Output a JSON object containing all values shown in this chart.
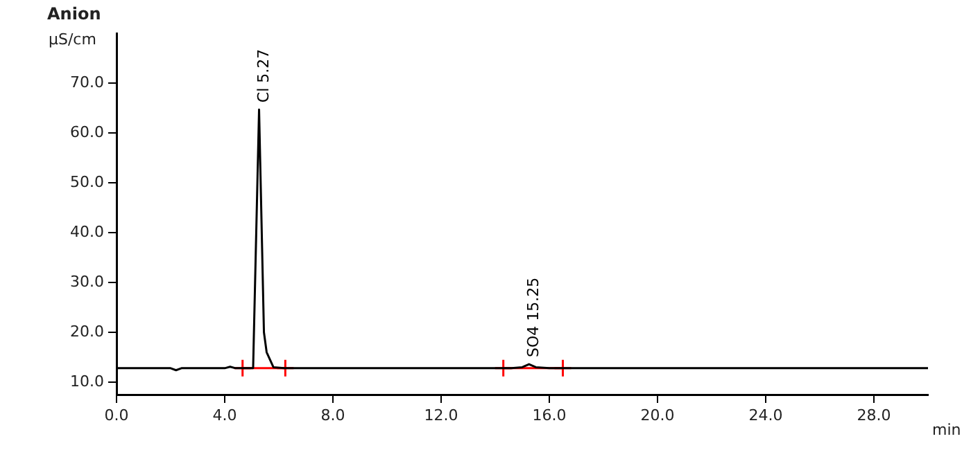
{
  "chart_data": {
    "type": "line",
    "title": "Anion",
    "ylabel": "µS/cm",
    "xlabel": "min",
    "xlim": [
      0,
      30
    ],
    "ylim": [
      7.5,
      80
    ],
    "xticks": [
      {
        "value": 0,
        "label": "0.0"
      },
      {
        "value": 4,
        "label": "4.0"
      },
      {
        "value": 8,
        "label": "8.0"
      },
      {
        "value": 12,
        "label": "12.0"
      },
      {
        "value": 16,
        "label": "16.0"
      },
      {
        "value": 20,
        "label": "20.0"
      },
      {
        "value": 24,
        "label": "24.0"
      },
      {
        "value": 28,
        "label": "28.0"
      }
    ],
    "yticks": [
      {
        "value": 10,
        "label": "10.0"
      },
      {
        "value": 20,
        "label": "20.0"
      },
      {
        "value": 30,
        "label": "30.0"
      },
      {
        "value": 40,
        "label": "40.0"
      },
      {
        "value": 50,
        "label": "50.0"
      },
      {
        "value": 60,
        "label": "60.0"
      },
      {
        "value": 70,
        "label": "70.0"
      }
    ],
    "grid": false,
    "legend": false,
    "marker": "none",
    "line_style": "solid",
    "series": [
      {
        "color": "#000000",
        "x": [
          0,
          2.0,
          2.2,
          2.4,
          3.0,
          4.0,
          4.2,
          4.4,
          5.05,
          5.27,
          5.45,
          5.55,
          5.8,
          6.2,
          8,
          14.6,
          15.0,
          15.25,
          15.5,
          16.0,
          20,
          30
        ],
        "values": [
          12.8,
          12.8,
          12.4,
          12.8,
          12.8,
          12.8,
          13.1,
          12.8,
          12.8,
          64.7,
          20,
          16,
          13.0,
          12.8,
          12.8,
          12.8,
          13.0,
          13.6,
          13.0,
          12.8,
          12.8,
          12.8
        ]
      },
      {
        "type": "line",
        "color": "#ff0000",
        "marker": "cross",
        "x": [
          4.66,
          6.24
        ],
        "values": [
          12.8,
          12.8
        ]
      },
      {
        "type": "line",
        "color": "#ff0000",
        "marker": "cross",
        "x": [
          14.3,
          16.5
        ],
        "values": [
          12.8,
          12.8
        ]
      }
    ],
    "annotations": [
      {
        "text": "Cl 5.27",
        "x": 5.27,
        "y": 64.7
      },
      {
        "text": "SO4 15.25",
        "x": 15.25,
        "y": 13.6
      }
    ]
  }
}
